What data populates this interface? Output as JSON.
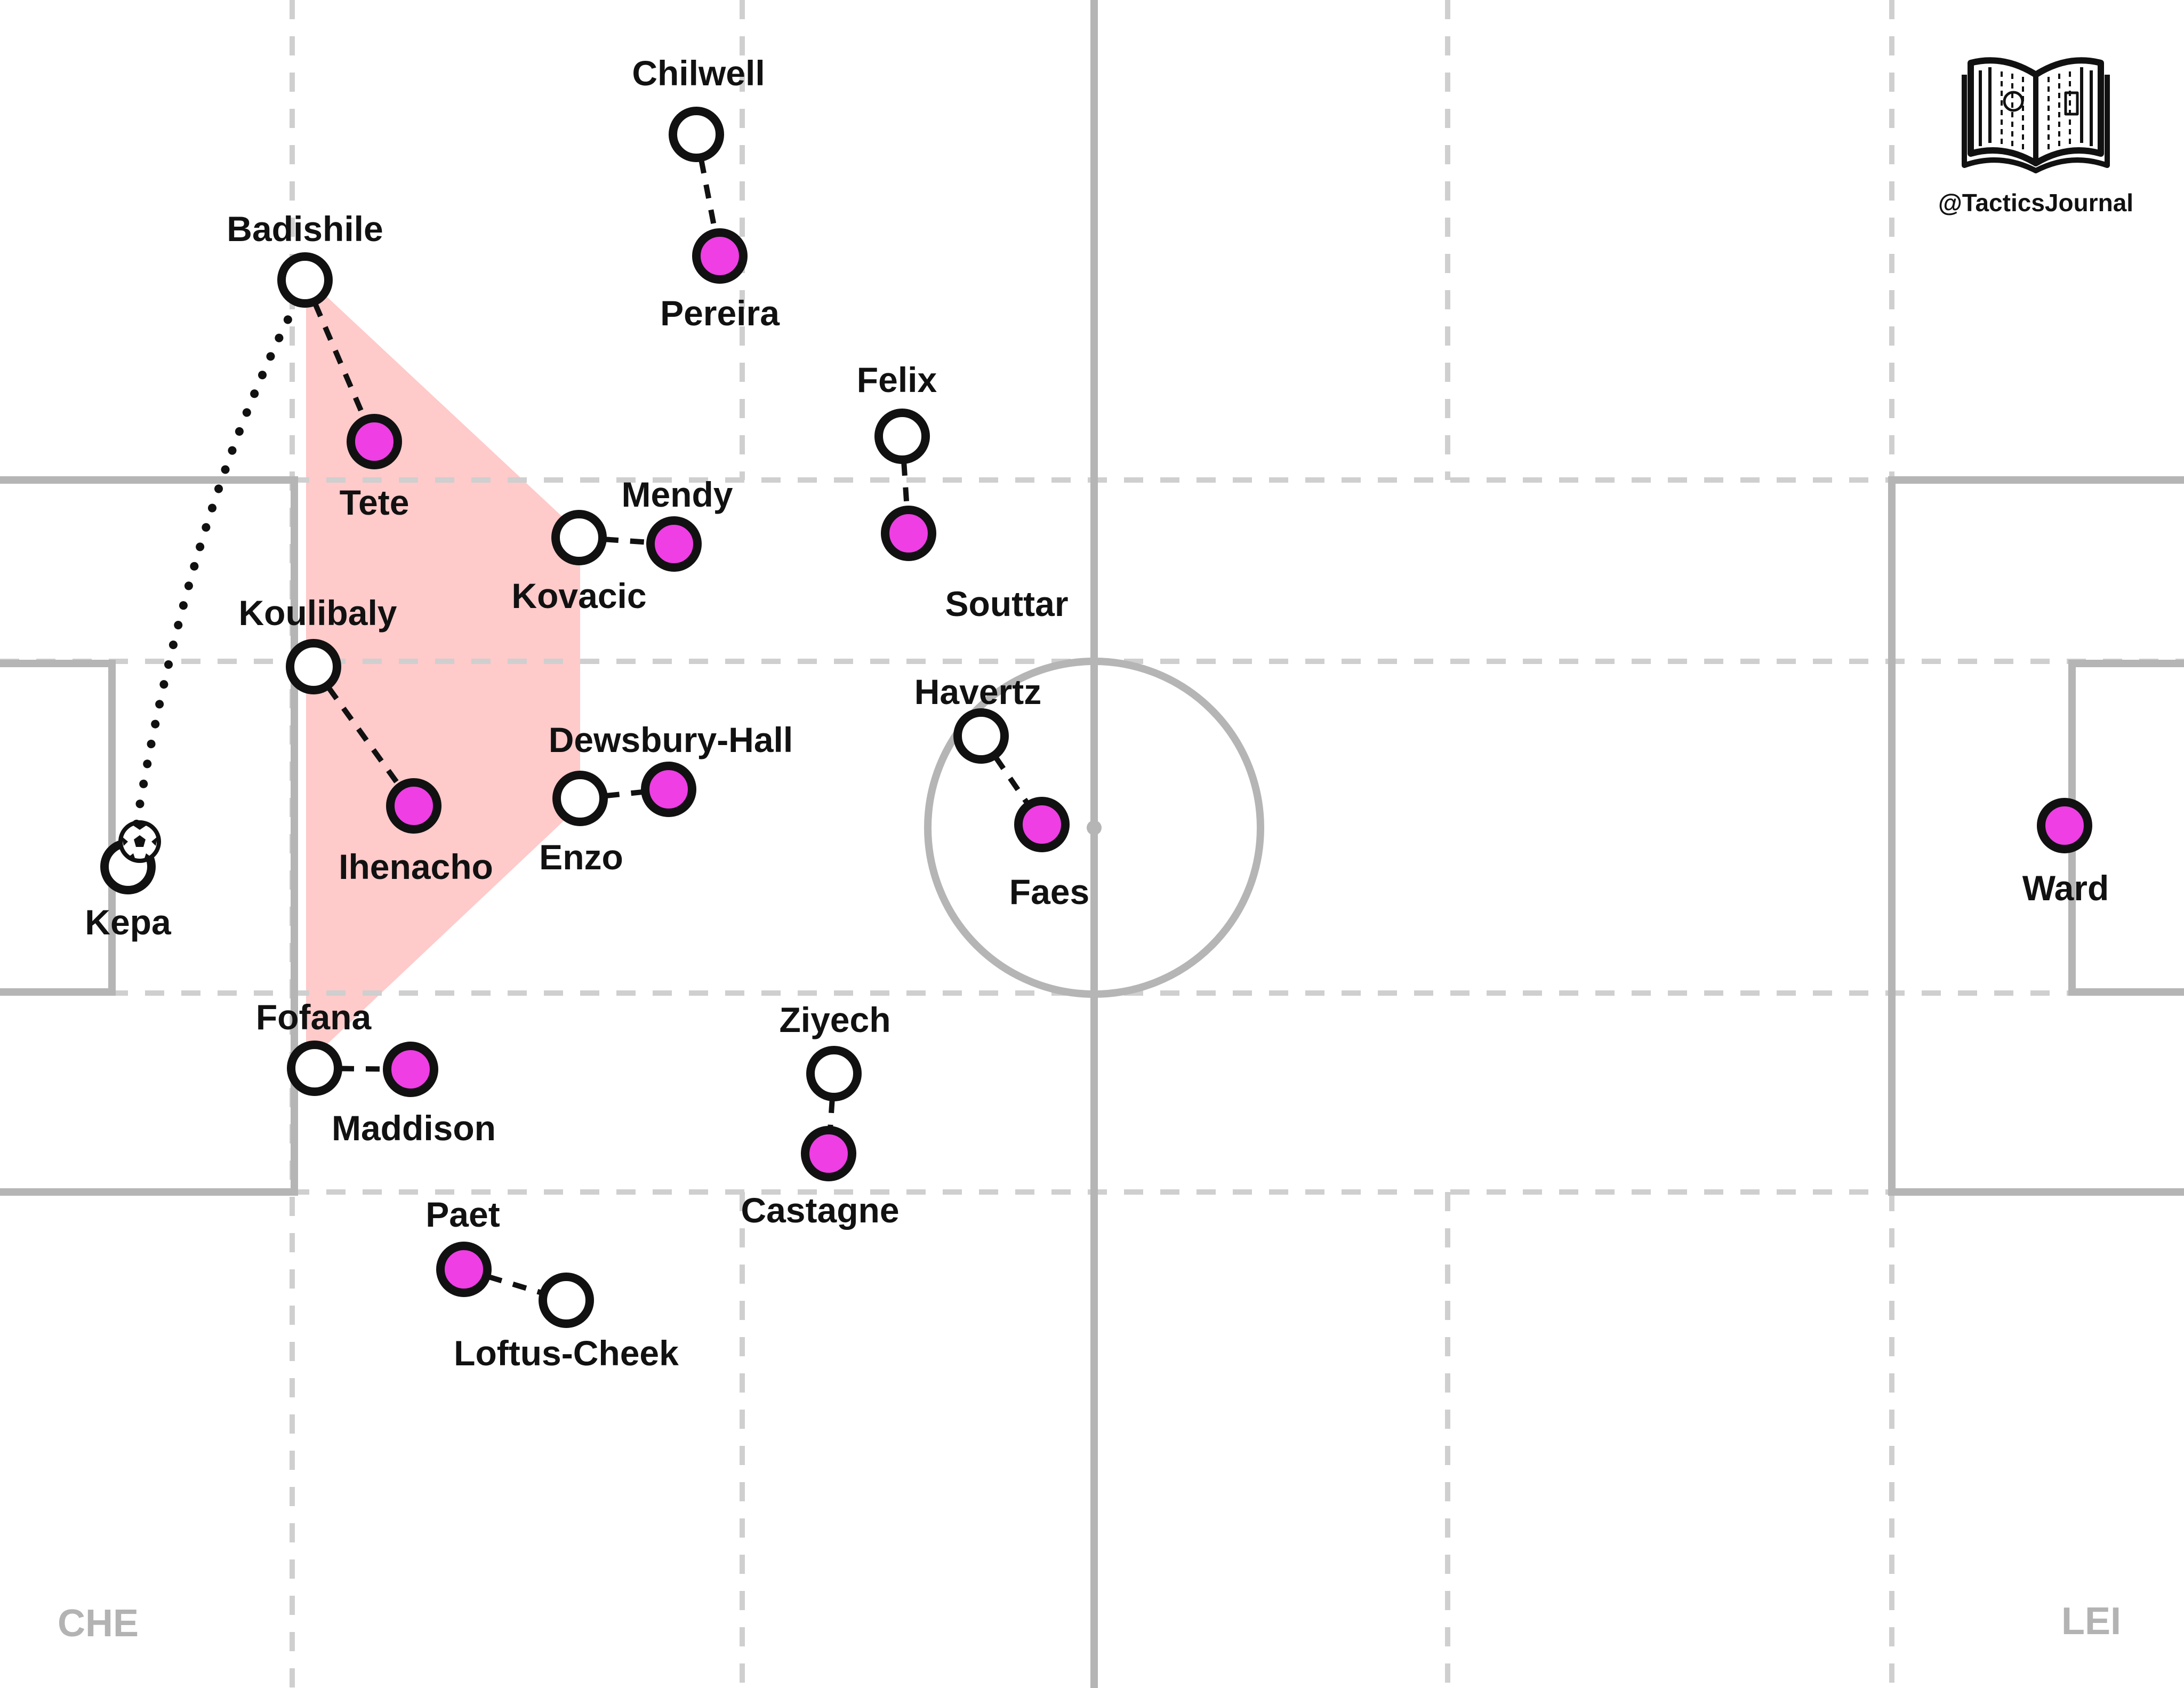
{
  "watermark": {
    "handle": "@TacticsJournal",
    "icon": "open-book-pitch-icon"
  },
  "teams": {
    "left": "CHE",
    "right": "LEI"
  },
  "colors": {
    "chelsea_fill": "#ffffff",
    "leicester_fill": "#ee3ee4",
    "outline": "#111111",
    "pitch_lines": "#b5b5b5",
    "zone_lines": "#cfcfcf",
    "shaded_area": "#ffcaca",
    "team_tags": "#b3b3b3"
  },
  "players": {
    "kepa": {
      "name": "Kepa",
      "team": "CHE"
    },
    "chilwell": {
      "name": "Chilwell",
      "team": "CHE"
    },
    "badishile": {
      "name": "Badishile",
      "team": "CHE"
    },
    "felix": {
      "name": "Felix",
      "team": "CHE"
    },
    "kovacic": {
      "name": "Kovacic",
      "team": "CHE"
    },
    "koulibaly": {
      "name": "Koulibaly",
      "team": "CHE"
    },
    "enzo": {
      "name": "Enzo",
      "team": "CHE"
    },
    "havertz": {
      "name": "Havertz",
      "team": "CHE"
    },
    "fofana": {
      "name": "Fofana",
      "team": "CHE"
    },
    "ziyech": {
      "name": "Ziyech",
      "team": "CHE"
    },
    "loftus_cheek": {
      "name": "Loftus-Cheek",
      "team": "CHE"
    },
    "pereira": {
      "name": "Pereira",
      "team": "LEI"
    },
    "tete": {
      "name": "Tete",
      "team": "LEI"
    },
    "mendy": {
      "name": "Mendy",
      "team": "LEI"
    },
    "souttar": {
      "name": "Souttar",
      "team": "LEI"
    },
    "dewsbury_hall": {
      "name": "Dewsbury-Hall",
      "team": "LEI"
    },
    "ihenacho": {
      "name": "Ihenacho",
      "team": "LEI"
    },
    "faes": {
      "name": "Faes",
      "team": "LEI"
    },
    "maddison": {
      "name": "Maddison",
      "team": "LEI"
    },
    "castagne": {
      "name": "Castagne",
      "team": "LEI"
    },
    "paet": {
      "name": "Paet",
      "team": "LEI"
    },
    "ward": {
      "name": "Ward",
      "team": "LEI"
    }
  },
  "ball": {
    "holder": "Kepa",
    "icon": "football-icon"
  },
  "pass_line": {
    "from": "Kepa",
    "to": "Badishile",
    "style": "dotted"
  },
  "marking_pairs": [
    [
      "Chilwell",
      "Pereira"
    ],
    [
      "Badishile",
      "Tete"
    ],
    [
      "Kovacic",
      "Mendy"
    ],
    [
      "Felix",
      "Souttar"
    ],
    [
      "Koulibaly",
      "Ihenacho"
    ],
    [
      "Enzo",
      "Dewsbury-Hall"
    ],
    [
      "Havertz",
      "Faes"
    ],
    [
      "Fofana",
      "Maddison"
    ],
    [
      "Ziyech",
      "Castagne"
    ],
    [
      "Paet",
      "Loftus-Cheek"
    ]
  ]
}
